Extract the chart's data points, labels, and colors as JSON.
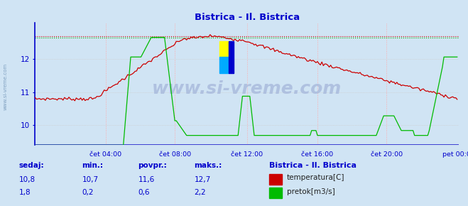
{
  "title": "Bistrica - Il. Bistrica",
  "title_color": "#0000cc",
  "bg_color": "#d0e4f4",
  "plot_bg_color": "#d0e4f4",
  "x_labels": [
    "čet 04:00",
    "čet 08:00",
    "čet 12:00",
    "čet 16:00",
    "čet 20:00",
    "pet 00:00"
  ],
  "x_ticks_norm": [
    0.167,
    0.333,
    0.5,
    0.667,
    0.833,
    1.0
  ],
  "total_points": 288,
  "y_min": 9.4,
  "y_max": 13.1,
  "y_ticks": [
    10,
    11,
    12
  ],
  "temp_color": "#cc0000",
  "flow_color": "#00bb00",
  "axis_color": "#0000cc",
  "tick_color": "#0000cc",
  "watermark": "www.si-vreme.com",
  "watermark_color": "#aabbdd",
  "legend_title": "Bistrica - Il. Bistrica",
  "legend_title_color": "#0000cc",
  "legend_color": "#0000cc",
  "temp_max_dotted": 12.7,
  "flow_max_dotted_scaled": 9.72,
  "flow_baseline_y": 9.4,
  "temp_sed": "10,8",
  "temp_min": "10,7",
  "temp_avg": "11,6",
  "temp_maks": "12,7",
  "flow_sed": "1,8",
  "flow_min": "0,2",
  "flow_avg": "0,6",
  "flow_maks": "2,2",
  "logo_yellow": "#ffff00",
  "logo_cyan": "#00aaff",
  "logo_blue": "#0000cc",
  "side_text_color": "#7799bb"
}
